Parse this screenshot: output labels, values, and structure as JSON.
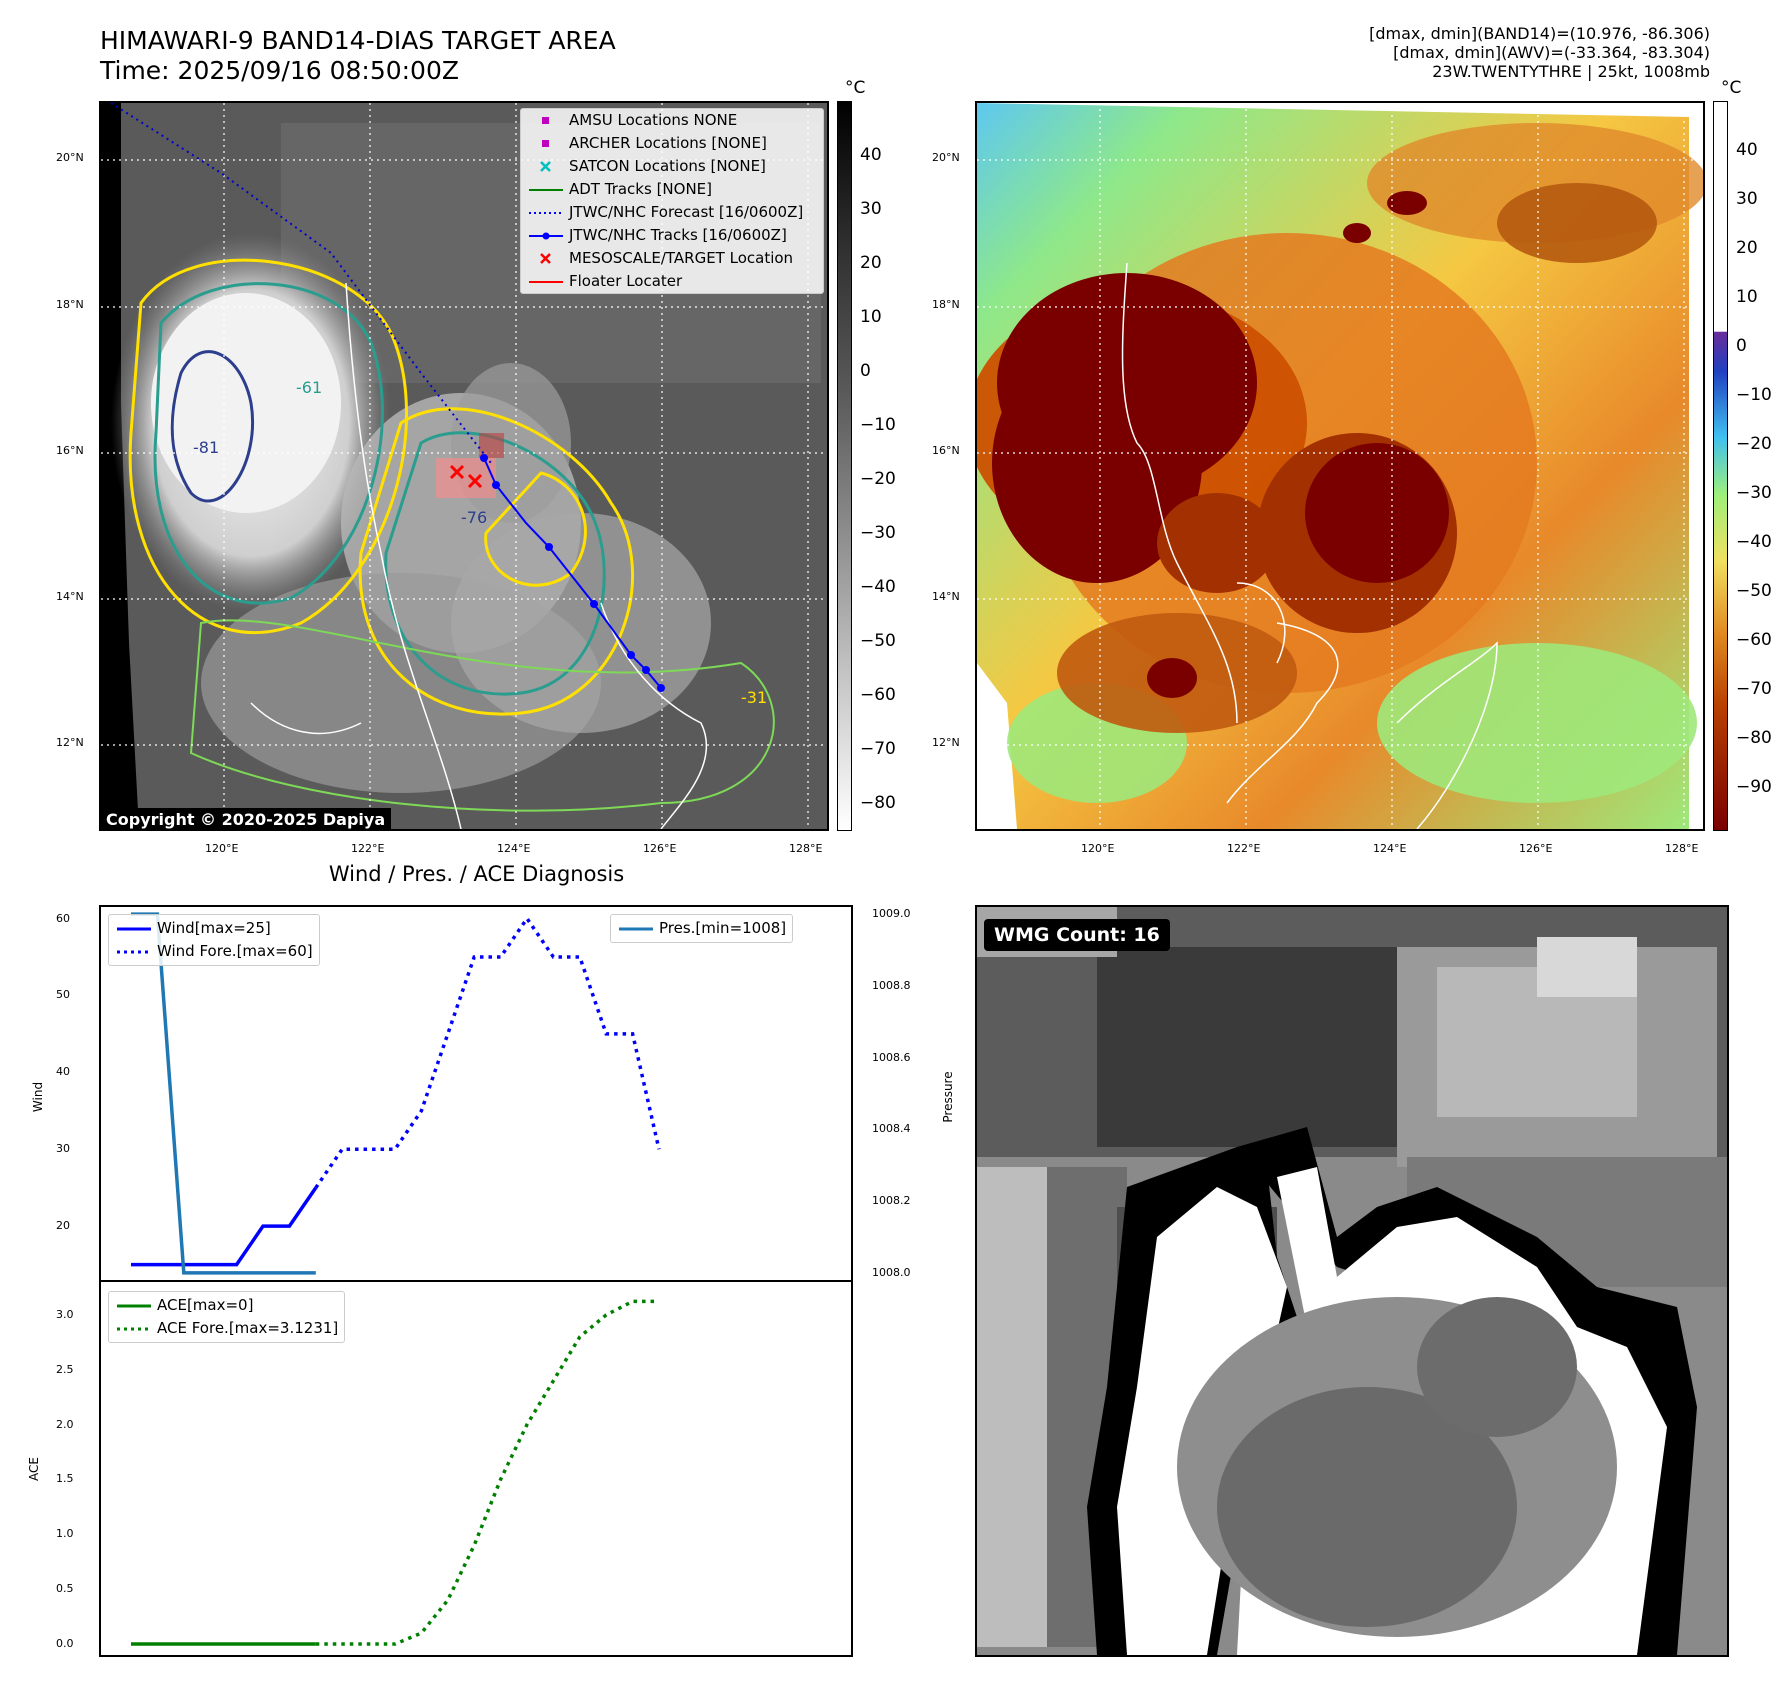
{
  "header": {
    "title_line1": "HIMAWARI-9 BAND14-DIAS TARGET AREA",
    "title_line2": "Time: 2025/09/16 08:50:00Z",
    "info_line1": "[dmax, dmin](BAND14)=(10.976, -86.306)",
    "info_line2": "[dmax, dmin](AWV)=(-33.364, -83.304)",
    "info_line3": "23W.TWENTYTHRE | 25kt, 1008mb"
  },
  "maps": {
    "lat_labels": [
      "20°N",
      "18°N",
      "16°N",
      "14°N",
      "12°N"
    ],
    "lon_labels": [
      "120°E",
      "122°E",
      "124°E",
      "126°E",
      "128°E"
    ],
    "copyright": "Copyright © 2020-2025 Dapiya",
    "contour_labels": [
      "-31",
      "-61",
      "-76",
      "-81"
    ]
  },
  "colorbar_ir": {
    "unit": "°C",
    "ticks": [
      "40",
      "30",
      "20",
      "10",
      "0",
      "−10",
      "−20",
      "−30",
      "−40",
      "−50",
      "−60",
      "−70",
      "−80"
    ]
  },
  "colorbar_wv": {
    "unit": "°C",
    "ticks": [
      "40",
      "30",
      "20",
      "10",
      "0",
      "−10",
      "−20",
      "−30",
      "−40",
      "−50",
      "−60",
      "−70",
      "−80",
      "−90"
    ]
  },
  "legend_map": {
    "items": [
      {
        "label": "AMSU Locations NONE",
        "color": "#bf00bf"
      },
      {
        "label": "ARCHER Locations [NONE]",
        "color": "#bf00bf"
      },
      {
        "label": "SATCON Locations [NONE]",
        "color": "#00bfbf"
      },
      {
        "label": "ADT Tracks [NONE]",
        "color": "#008000"
      },
      {
        "label": "JTWC/NHC Forecast [16/0600Z]",
        "color": "#0000ff"
      },
      {
        "label": "JTWC/NHC Tracks [16/0600Z]",
        "color": "#0000ff"
      },
      {
        "label": "MESOSCALE/TARGET Location",
        "color": "#ff0000"
      },
      {
        "label": "Floater Locater",
        "color": "#ff0000"
      }
    ]
  },
  "wmg": {
    "label": "WMG Count: 16"
  },
  "chart_data": [
    {
      "type": "line",
      "title": "Wind / Pres. / ACE Diagnosis",
      "ylabel": "Wind",
      "ylabel_right": "Pressure",
      "ylim": [
        13,
        61.5
      ],
      "ylim_right": [
        1007.98,
        1009.02
      ],
      "yticks": [
        20,
        30,
        40,
        50,
        60
      ],
      "yticks_right": [
        "1008.0",
        "1008.2",
        "1008.4",
        "1008.6",
        "1008.8",
        "1009.0"
      ],
      "series": [
        {
          "name": "Wind[max=25]",
          "color": "#0000ff",
          "style": "solid",
          "values": [
            15,
            15,
            15,
            15,
            15,
            20,
            20,
            25
          ]
        },
        {
          "name": "Wind Fore.[max=60]",
          "color": "#0000ff",
          "style": "dotted",
          "values": [
            25,
            30,
            30,
            30,
            35,
            45,
            55,
            55,
            60,
            55,
            55,
            45,
            45,
            30
          ]
        },
        {
          "name": "Pres.[min=1008]",
          "color": "#1f77b4",
          "style": "solid",
          "axis": "right",
          "values": [
            1009,
            1009,
            1008,
            1008,
            1008,
            1008,
            1008,
            1008
          ]
        }
      ]
    },
    {
      "type": "line",
      "ylabel": "ACE",
      "ylim": [
        -0.1,
        3.3
      ],
      "yticks": [
        "0.0",
        "0.5",
        "1.0",
        "1.5",
        "2.0",
        "2.5",
        "3.0"
      ],
      "series": [
        {
          "name": "ACE[max=0]",
          "color": "#008000",
          "style": "solid",
          "values": [
            0,
            0,
            0,
            0,
            0,
            0,
            0,
            0
          ]
        },
        {
          "name": "ACE Fore.[max=3.1231]",
          "color": "#008000",
          "style": "dotted",
          "values": [
            0,
            0,
            0,
            0,
            0.1,
            0.4,
            0.9,
            1.5,
            2.0,
            2.4,
            2.8,
            3.0,
            3.1231,
            3.1231
          ]
        }
      ]
    }
  ]
}
